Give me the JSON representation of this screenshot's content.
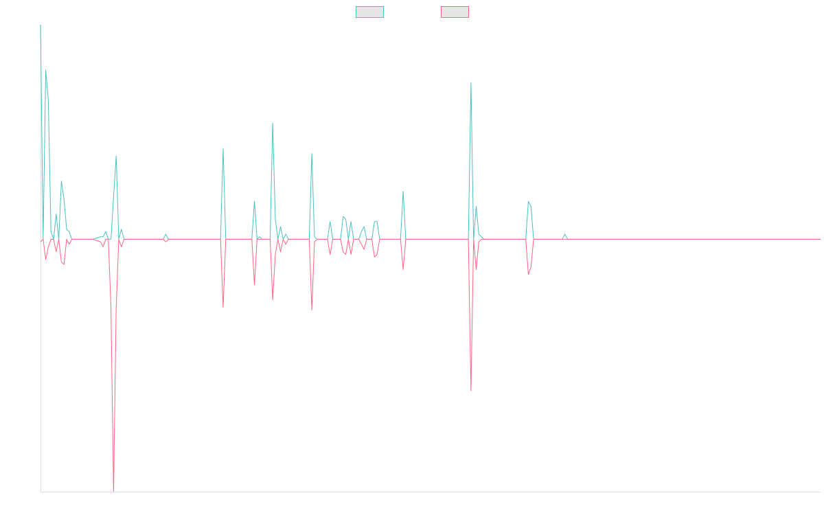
{
  "chart_data": {
    "type": "line",
    "title": "",
    "xlabel": "",
    "ylabel": "",
    "x_count": 300,
    "ylim": [
      -100,
      85
    ],
    "grid": false,
    "legend_position": "top-center",
    "series": [
      {
        "name": "",
        "color": "#4bc0c0",
        "fill": "#e6e6e6",
        "points": [
          [
            0,
            85
          ],
          [
            1,
            0
          ],
          [
            2,
            67
          ],
          [
            3,
            55
          ],
          [
            4,
            3
          ],
          [
            5,
            0
          ],
          [
            6,
            10
          ],
          [
            7,
            0
          ],
          [
            8,
            23
          ],
          [
            9,
            16
          ],
          [
            10,
            4
          ],
          [
            11,
            3
          ],
          [
            12,
            0
          ],
          [
            13,
            0
          ],
          [
            20,
            0
          ],
          [
            23,
            1
          ],
          [
            24,
            1
          ],
          [
            25,
            3
          ],
          [
            26,
            0
          ],
          [
            27,
            0
          ],
          [
            29,
            33
          ],
          [
            30,
            0
          ],
          [
            31,
            4
          ],
          [
            32,
            0
          ],
          [
            33,
            0
          ],
          [
            47,
            0
          ],
          [
            48,
            2
          ],
          [
            49,
            0
          ],
          [
            69,
            0
          ],
          [
            70,
            36
          ],
          [
            71,
            0
          ],
          [
            72,
            0
          ],
          [
            81,
            0
          ],
          [
            82,
            15
          ],
          [
            83,
            0
          ],
          [
            84,
            1
          ],
          [
            85,
            0
          ],
          [
            88,
            0
          ],
          [
            89,
            46
          ],
          [
            90,
            8
          ],
          [
            91,
            0
          ],
          [
            92,
            5
          ],
          [
            93,
            0
          ],
          [
            94,
            2
          ],
          [
            95,
            0
          ],
          [
            103,
            0
          ],
          [
            104,
            34
          ],
          [
            105,
            1
          ],
          [
            106,
            0
          ],
          [
            110,
            0
          ],
          [
            111,
            7
          ],
          [
            112,
            0
          ],
          [
            115,
            0
          ],
          [
            116,
            9
          ],
          [
            117,
            8
          ],
          [
            118,
            0
          ],
          [
            119,
            7
          ],
          [
            120,
            0
          ],
          [
            121,
            0
          ],
          [
            122,
            0
          ],
          [
            123,
            3
          ],
          [
            124,
            5
          ],
          [
            125,
            0
          ],
          [
            126,
            0
          ],
          [
            127,
            0
          ],
          [
            128,
            7
          ],
          [
            129,
            7
          ],
          [
            130,
            0
          ],
          [
            138,
            0
          ],
          [
            139,
            19
          ],
          [
            140,
            0
          ],
          [
            164,
            0
          ],
          [
            165,
            62
          ],
          [
            166,
            0
          ],
          [
            167,
            13
          ],
          [
            168,
            2
          ],
          [
            169,
            1
          ],
          [
            170,
            0
          ],
          [
            186,
            0
          ],
          [
            187,
            15
          ],
          [
            188,
            13
          ],
          [
            189,
            0
          ],
          [
            200,
            0
          ],
          [
            201,
            2
          ],
          [
            202,
            0
          ],
          [
            299,
            0
          ]
        ]
      },
      {
        "name": "",
        "color": "#ff6384",
        "fill": "#e6e6e6",
        "points": [
          [
            0,
            -1
          ],
          [
            1,
            0
          ],
          [
            2,
            -8
          ],
          [
            3,
            -3
          ],
          [
            4,
            0
          ],
          [
            5,
            0
          ],
          [
            6,
            -5
          ],
          [
            7,
            0
          ],
          [
            8,
            -9
          ],
          [
            9,
            -10
          ],
          [
            10,
            0
          ],
          [
            11,
            -2
          ],
          [
            12,
            0
          ],
          [
            13,
            0
          ],
          [
            20,
            0
          ],
          [
            23,
            -1
          ],
          [
            24,
            -3
          ],
          [
            25,
            0
          ],
          [
            26,
            0
          ],
          [
            27,
            -27
          ],
          [
            28,
            -100
          ],
          [
            29,
            -27
          ],
          [
            30,
            0
          ],
          [
            31,
            -3
          ],
          [
            32,
            0
          ],
          [
            33,
            0
          ],
          [
            47,
            0
          ],
          [
            48,
            -1
          ],
          [
            49,
            0
          ],
          [
            69,
            0
          ],
          [
            70,
            -27
          ],
          [
            71,
            0
          ],
          [
            72,
            0
          ],
          [
            81,
            0
          ],
          [
            82,
            -18
          ],
          [
            83,
            0
          ],
          [
            84,
            0
          ],
          [
            85,
            0
          ],
          [
            88,
            0
          ],
          [
            89,
            -24
          ],
          [
            90,
            -6
          ],
          [
            91,
            0
          ],
          [
            92,
            -5
          ],
          [
            93,
            0
          ],
          [
            94,
            -2
          ],
          [
            95,
            0
          ],
          [
            103,
            0
          ],
          [
            104,
            -28
          ],
          [
            105,
            -1
          ],
          [
            106,
            0
          ],
          [
            110,
            0
          ],
          [
            111,
            -6
          ],
          [
            112,
            0
          ],
          [
            115,
            0
          ],
          [
            116,
            -5
          ],
          [
            117,
            -6
          ],
          [
            118,
            0
          ],
          [
            119,
            -6
          ],
          [
            120,
            0
          ],
          [
            121,
            0
          ],
          [
            122,
            0
          ],
          [
            123,
            -2
          ],
          [
            124,
            -4
          ],
          [
            125,
            0
          ],
          [
            126,
            0
          ],
          [
            127,
            0
          ],
          [
            128,
            -7
          ],
          [
            129,
            -6
          ],
          [
            130,
            0
          ],
          [
            138,
            0
          ],
          [
            139,
            -12
          ],
          [
            140,
            0
          ],
          [
            164,
            0
          ],
          [
            165,
            -60
          ],
          [
            166,
            0
          ],
          [
            167,
            -12
          ],
          [
            168,
            -1
          ],
          [
            169,
            0
          ],
          [
            170,
            0
          ],
          [
            186,
            0
          ],
          [
            187,
            -14
          ],
          [
            188,
            -11
          ],
          [
            189,
            0
          ],
          [
            200,
            0
          ],
          [
            201,
            0
          ],
          [
            202,
            0
          ],
          [
            299,
            0
          ]
        ]
      }
    ]
  }
}
